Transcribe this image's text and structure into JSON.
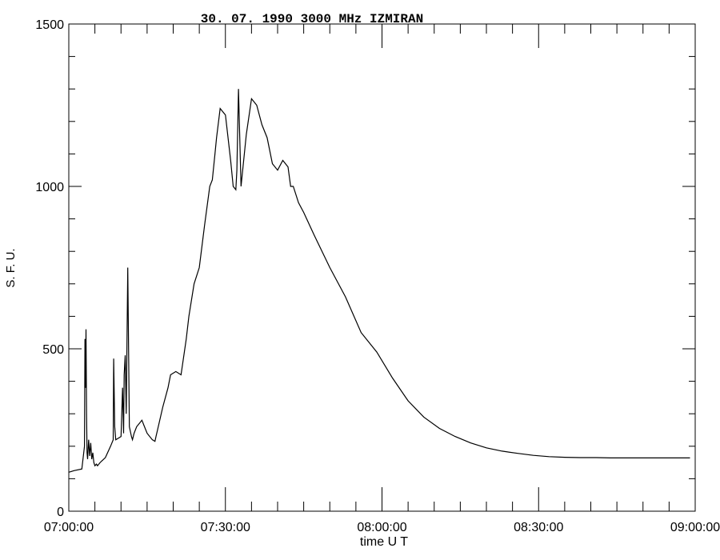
{
  "chart_data": {
    "type": "line",
    "title": "30.  07.  1990  3000 MHz  IZMIRAN",
    "xlabel": "time   U T",
    "ylabel": "S. F. U.",
    "x_unit": "minutes after 07:00:00 UT",
    "xlim": [
      0,
      120
    ],
    "ylim": [
      0,
      1500
    ],
    "x_ticks": [
      {
        "value": 0,
        "label": "07:00:00"
      },
      {
        "value": 30,
        "label": "07:30:00"
      },
      {
        "value": 60,
        "label": "08:00:00"
      },
      {
        "value": 90,
        "label": "08:30:00"
      },
      {
        "value": 120,
        "label": "09:00:00"
      }
    ],
    "y_ticks": [
      {
        "value": 0,
        "label": "0"
      },
      {
        "value": 500,
        "label": "500"
      },
      {
        "value": 1000,
        "label": "1000"
      },
      {
        "value": 1500,
        "label": "1500"
      }
    ],
    "grid": false,
    "series": [
      {
        "x": [
          0,
          1,
          2.5,
          3.0,
          3.1,
          3.2,
          3.3,
          3.4,
          3.5,
          3.6,
          3.8,
          4.0,
          4.2,
          4.4,
          4.6,
          4.8,
          5.0,
          5.3,
          5.5,
          6.0,
          7.0,
          8.0,
          8.5,
          8.6,
          8.8,
          9.0,
          10.0,
          10.3,
          10.5,
          10.6,
          10.8,
          11.0,
          11.3,
          11.6,
          12.0,
          12.2,
          12.5,
          13.0,
          14.0,
          14.5,
          15.0,
          16.0,
          16.5,
          16.7,
          17.0,
          18.0,
          19.0,
          19.5,
          20.5,
          21.5,
          22.5,
          23.0,
          24.0,
          25.0,
          26.0,
          27.0,
          27.5,
          28.0,
          28.3,
          29.0,
          30.0,
          31.0,
          31.5,
          32.0,
          32.2,
          32.5,
          33.0,
          34.0,
          35.0,
          36.0,
          37.0,
          38.0,
          39.0,
          40.0,
          41.0,
          42.0,
          42.5,
          43.0,
          44.0,
          45.0,
          47.0,
          50.0,
          53.0,
          56.0,
          59.0,
          62.0,
          65.0,
          68.0,
          71.0,
          74.0,
          77.0,
          80.0,
          83.0,
          86.0,
          89.0,
          92.0,
          95.0,
          98.0,
          101.0,
          104.0,
          107.0,
          110.0,
          113.0,
          116.0,
          119.0
        ],
        "y": [
          120,
          125,
          130,
          200,
          530,
          380,
          560,
          300,
          180,
          160,
          220,
          170,
          210,
          160,
          180,
          150,
          140,
          145,
          140,
          150,
          165,
          200,
          220,
          470,
          260,
          220,
          230,
          380,
          240,
          420,
          480,
          300,
          750,
          260,
          230,
          220,
          240,
          260,
          280,
          260,
          240,
          220,
          215,
          230,
          250,
          320,
          380,
          420,
          430,
          420,
          530,
          600,
          700,
          750,
          880,
          1000,
          1020,
          1100,
          1150,
          1240,
          1220,
          1080,
          1000,
          990,
          1050,
          1300,
          1000,
          1160,
          1270,
          1250,
          1190,
          1150,
          1070,
          1050,
          1080,
          1060,
          1000,
          1000,
          950,
          920,
          850,
          750,
          660,
          550,
          490,
          410,
          340,
          290,
          255,
          230,
          210,
          195,
          185,
          178,
          172,
          168,
          166,
          165,
          165,
          164,
          164,
          164,
          164,
          164,
          164
        ]
      }
    ]
  }
}
